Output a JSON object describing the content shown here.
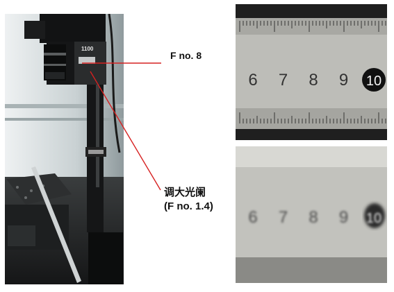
{
  "annotations": {
    "f8_label": "F no.   8",
    "open_aperture_label": "调大光阑",
    "open_aperture_value": "(F no. 1.4)"
  },
  "camera_badge": "1100",
  "ruler_numbers": [
    "6",
    "7",
    "8",
    "9",
    "10"
  ],
  "colors": {
    "arrow": "#d62020",
    "ruler_marker": "#111111"
  }
}
